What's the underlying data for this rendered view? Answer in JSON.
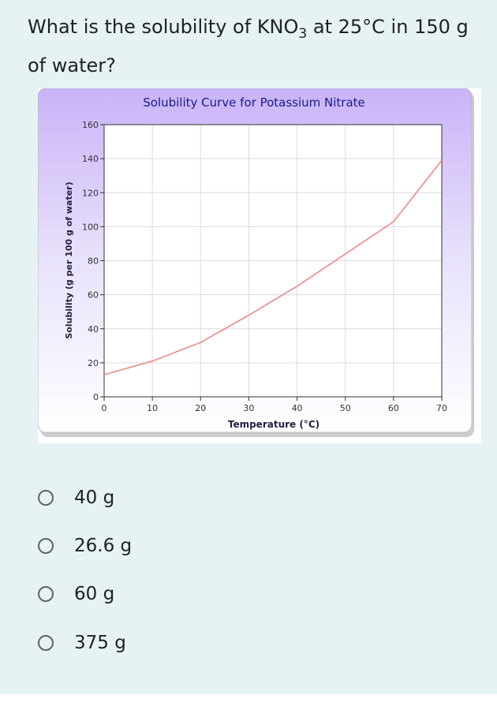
{
  "question": {
    "prefix": "What is the solubility of KNO",
    "subscript": "3",
    "suffix": " at 25°C in 150 g of water?"
  },
  "options": [
    {
      "label": "40 g"
    },
    {
      "label": "26.6 g"
    },
    {
      "label": "60 g"
    },
    {
      "label": "375 g"
    }
  ],
  "colors": {
    "background": "#e6f2f4",
    "line": "#ee8a8a",
    "title": "#1a1a8c",
    "header_gradient_top": "#c9b3f7"
  },
  "chart_data": {
    "type": "line",
    "title": "Solubility Curve for Potassium Nitrate",
    "xlabel": "Temperature (°C)",
    "ylabel": "Solubility (g per 100 g of water)",
    "xlim": [
      0,
      70
    ],
    "ylim": [
      0,
      160
    ],
    "x_ticks": [
      0,
      10,
      20,
      30,
      40,
      50,
      60,
      70
    ],
    "y_ticks": [
      0,
      20,
      40,
      60,
      80,
      100,
      120,
      140,
      160
    ],
    "grid": true,
    "series": [
      {
        "x": [
          0,
          10,
          20,
          30,
          40,
          50,
          60,
          70
        ],
        "y": [
          13,
          21,
          32,
          48,
          65,
          84,
          103,
          139
        ]
      }
    ]
  }
}
